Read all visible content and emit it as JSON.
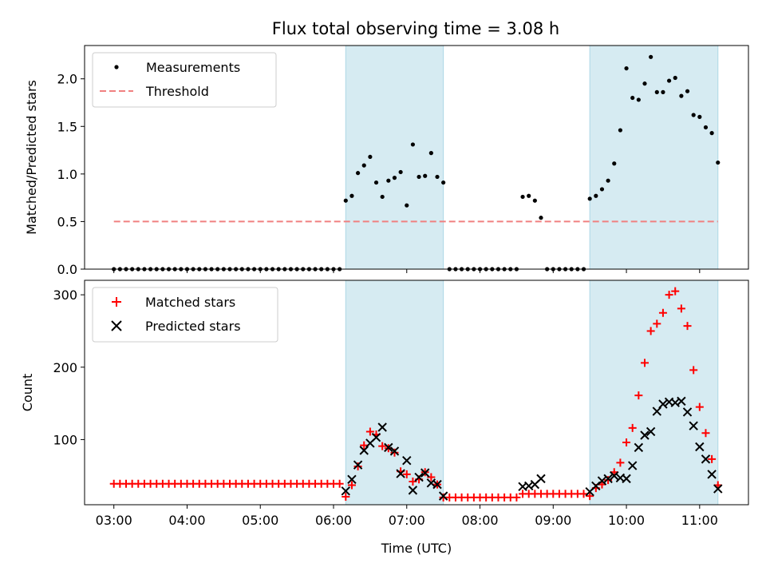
{
  "title": "Flux total observing time = 3.08 h",
  "colors": {
    "band": "#add8e6",
    "threshold": "#f08080",
    "matched": "#ff0000",
    "predicted": "#000000",
    "measurement": "#000000"
  },
  "chart_data": [
    {
      "type": "scatter",
      "ylabel": "Matched/Predicted stars",
      "xlabel": "",
      "ylim": [
        0,
        2.35
      ],
      "yticks": [
        0.0,
        0.5,
        1.0,
        1.5,
        2.0
      ],
      "ytick_labels": [
        "0.0",
        "0.5",
        "1.0",
        "1.5",
        "2.0"
      ],
      "xlim": [
        "02:36",
        "11:40"
      ],
      "xticks": [
        "03:00",
        "04:00",
        "05:00",
        "06:00",
        "07:00",
        "08:00",
        "09:00",
        "10:00",
        "11:00"
      ],
      "legend_position": "top-left",
      "legend": [
        "Measurements",
        "Threshold"
      ],
      "shaded_intervals": [
        [
          "06:10",
          "07:30"
        ],
        [
          "09:30",
          "11:15"
        ]
      ],
      "threshold": {
        "name": "Threshold",
        "value": 0.5,
        "x_range": [
          "03:00",
          "11:15"
        ]
      },
      "series": [
        {
          "name": "Measurements",
          "points": [
            [
              "03:00",
              0
            ],
            [
              "03:05",
              0
            ],
            [
              "03:10",
              0
            ],
            [
              "03:15",
              0
            ],
            [
              "03:20",
              0
            ],
            [
              "03:25",
              0
            ],
            [
              "03:30",
              0
            ],
            [
              "03:35",
              0
            ],
            [
              "03:40",
              0
            ],
            [
              "03:45",
              0
            ],
            [
              "03:50",
              0
            ],
            [
              "03:55",
              0
            ],
            [
              "04:00",
              0
            ],
            [
              "04:05",
              0
            ],
            [
              "04:10",
              0
            ],
            [
              "04:15",
              0
            ],
            [
              "04:20",
              0
            ],
            [
              "04:25",
              0
            ],
            [
              "04:30",
              0
            ],
            [
              "04:35",
              0
            ],
            [
              "04:40",
              0
            ],
            [
              "04:45",
              0
            ],
            [
              "04:50",
              0
            ],
            [
              "04:55",
              0
            ],
            [
              "05:00",
              0
            ],
            [
              "05:05",
              0
            ],
            [
              "05:10",
              0
            ],
            [
              "05:15",
              0
            ],
            [
              "05:20",
              0
            ],
            [
              "05:25",
              0
            ],
            [
              "05:30",
              0
            ],
            [
              "05:35",
              0
            ],
            [
              "05:40",
              0
            ],
            [
              "05:45",
              0
            ],
            [
              "05:50",
              0
            ],
            [
              "05:55",
              0
            ],
            [
              "06:00",
              0
            ],
            [
              "06:05",
              0
            ],
            [
              "06:10",
              0.72
            ],
            [
              "06:15",
              0.77
            ],
            [
              "06:20",
              1.01
            ],
            [
              "06:25",
              1.09
            ],
            [
              "06:30",
              1.18
            ],
            [
              "06:35",
              0.91
            ],
            [
              "06:40",
              0.76
            ],
            [
              "06:45",
              0.93
            ],
            [
              "06:50",
              0.96
            ],
            [
              "06:55",
              1.02
            ],
            [
              "07:00",
              0.67
            ],
            [
              "07:05",
              1.31
            ],
            [
              "07:10",
              0.97
            ],
            [
              "07:15",
              0.98
            ],
            [
              "07:20",
              1.22
            ],
            [
              "07:25",
              0.97
            ],
            [
              "07:30",
              0.91
            ],
            [
              "07:35",
              0
            ],
            [
              "07:40",
              0
            ],
            [
              "07:45",
              0
            ],
            [
              "07:50",
              0
            ],
            [
              "07:55",
              0
            ],
            [
              "08:00",
              0
            ],
            [
              "08:05",
              0
            ],
            [
              "08:10",
              0
            ],
            [
              "08:15",
              0
            ],
            [
              "08:20",
              0
            ],
            [
              "08:25",
              0
            ],
            [
              "08:30",
              0
            ],
            [
              "08:35",
              0.76
            ],
            [
              "08:40",
              0.77
            ],
            [
              "08:45",
              0.72
            ],
            [
              "08:50",
              0.54
            ],
            [
              "08:55",
              0
            ],
            [
              "09:00",
              0
            ],
            [
              "09:05",
              0
            ],
            [
              "09:10",
              0
            ],
            [
              "09:15",
              0
            ],
            [
              "09:20",
              0
            ],
            [
              "09:25",
              0
            ],
            [
              "09:30",
              0.74
            ],
            [
              "09:35",
              0.77
            ],
            [
              "09:40",
              0.84
            ],
            [
              "09:45",
              0.93
            ],
            [
              "09:50",
              1.11
            ],
            [
              "09:55",
              1.46
            ],
            [
              "10:00",
              2.11
            ],
            [
              "10:05",
              1.8
            ],
            [
              "10:10",
              1.78
            ],
            [
              "10:15",
              1.95
            ],
            [
              "10:20",
              2.23
            ],
            [
              "10:25",
              1.86
            ],
            [
              "10:30",
              1.86
            ],
            [
              "10:35",
              1.98
            ],
            [
              "10:40",
              2.01
            ],
            [
              "10:45",
              1.82
            ],
            [
              "10:50",
              1.87
            ],
            [
              "10:55",
              1.62
            ],
            [
              "11:00",
              1.6
            ],
            [
              "11:05",
              1.49
            ],
            [
              "11:10",
              1.43
            ],
            [
              "11:15",
              1.12
            ]
          ]
        }
      ]
    },
    {
      "type": "scatter",
      "ylabel": "Count",
      "xlabel": "Time (UTC)",
      "ylim": [
        10,
        320
      ],
      "yticks": [
        100,
        200,
        300
      ],
      "ytick_labels": [
        "100",
        "200",
        "300"
      ],
      "xlim": [
        "02:36",
        "11:40"
      ],
      "xticks": [
        "03:00",
        "04:00",
        "05:00",
        "06:00",
        "07:00",
        "08:00",
        "09:00",
        "10:00",
        "11:00"
      ],
      "xtick_labels": [
        "03:00",
        "04:00",
        "05:00",
        "06:00",
        "07:00",
        "08:00",
        "09:00",
        "10:00",
        "11:00"
      ],
      "legend_position": "top-left",
      "legend": [
        "Matched stars",
        "Predicted stars"
      ],
      "shaded_intervals": [
        [
          "06:10",
          "07:30"
        ],
        [
          "09:30",
          "11:15"
        ]
      ],
      "series": [
        {
          "name": "Matched stars",
          "marker": "plus",
          "points": [
            [
              "03:00",
              39
            ],
            [
              "03:05",
              39
            ],
            [
              "03:10",
              39
            ],
            [
              "03:15",
              39
            ],
            [
              "03:20",
              39
            ],
            [
              "03:25",
              39
            ],
            [
              "03:30",
              39
            ],
            [
              "03:35",
              39
            ],
            [
              "03:40",
              39
            ],
            [
              "03:45",
              39
            ],
            [
              "03:50",
              39
            ],
            [
              "03:55",
              39
            ],
            [
              "04:00",
              39
            ],
            [
              "04:05",
              39
            ],
            [
              "04:10",
              39
            ],
            [
              "04:15",
              39
            ],
            [
              "04:20",
              39
            ],
            [
              "04:25",
              39
            ],
            [
              "04:30",
              39
            ],
            [
              "04:35",
              39
            ],
            [
              "04:40",
              39
            ],
            [
              "04:45",
              39
            ],
            [
              "04:50",
              39
            ],
            [
              "04:55",
              39
            ],
            [
              "05:00",
              39
            ],
            [
              "05:05",
              39
            ],
            [
              "05:10",
              39
            ],
            [
              "05:15",
              39
            ],
            [
              "05:20",
              39
            ],
            [
              "05:25",
              39
            ],
            [
              "05:30",
              39
            ],
            [
              "05:35",
              39
            ],
            [
              "05:40",
              39
            ],
            [
              "05:45",
              39
            ],
            [
              "05:50",
              39
            ],
            [
              "05:55",
              39
            ],
            [
              "06:00",
              39
            ],
            [
              "06:05",
              39
            ],
            [
              "06:10",
              21
            ],
            [
              "06:15",
              37
            ],
            [
              "06:20",
              63
            ],
            [
              "06:25",
              92
            ],
            [
              "06:30",
              111
            ],
            [
              "06:35",
              107
            ],
            [
              "06:40",
              91
            ],
            [
              "06:45",
              88
            ],
            [
              "06:50",
              82
            ],
            [
              "06:55",
              56
            ],
            [
              "07:00",
              52
            ],
            [
              "07:05",
              42
            ],
            [
              "07:10",
              45
            ],
            [
              "07:15",
              55
            ],
            [
              "07:20",
              48
            ],
            [
              "07:25",
              38
            ],
            [
              "07:30",
              20
            ],
            [
              "07:35",
              20
            ],
            [
              "07:40",
              20
            ],
            [
              "07:45",
              20
            ],
            [
              "07:50",
              20
            ],
            [
              "07:55",
              20
            ],
            [
              "08:00",
              20
            ],
            [
              "08:05",
              20
            ],
            [
              "08:10",
              20
            ],
            [
              "08:15",
              20
            ],
            [
              "08:20",
              20
            ],
            [
              "08:25",
              20
            ],
            [
              "08:30",
              20
            ],
            [
              "08:35",
              25
            ],
            [
              "08:40",
              25
            ],
            [
              "08:45",
              25
            ],
            [
              "08:50",
              25
            ],
            [
              "08:55",
              25
            ],
            [
              "09:00",
              25
            ],
            [
              "09:05",
              25
            ],
            [
              "09:10",
              25
            ],
            [
              "09:15",
              25
            ],
            [
              "09:20",
              25
            ],
            [
              "09:25",
              25
            ],
            [
              "09:30",
              22
            ],
            [
              "09:35",
              33
            ],
            [
              "09:40",
              38
            ],
            [
              "09:45",
              44
            ],
            [
              "09:50",
              55
            ],
            [
              "09:55",
              68
            ],
            [
              "10:00",
              96
            ],
            [
              "10:05",
              116
            ],
            [
              "10:10",
              161
            ],
            [
              "10:15",
              206
            ],
            [
              "10:20",
              250
            ],
            [
              "10:25",
              260
            ],
            [
              "10:30",
              275
            ],
            [
              "10:35",
              300
            ],
            [
              "10:40",
              305
            ],
            [
              "10:45",
              281
            ],
            [
              "10:50",
              257
            ],
            [
              "10:55",
              196
            ],
            [
              "11:00",
              145
            ],
            [
              "11:05",
              109
            ],
            [
              "11:10",
              73
            ],
            [
              "11:15",
              37
            ]
          ]
        },
        {
          "name": "Predicted stars",
          "marker": "x",
          "points": [
            [
              "06:10",
              29
            ],
            [
              "06:15",
              45
            ],
            [
              "06:20",
              65
            ],
            [
              "06:25",
              85
            ],
            [
              "06:30",
              95
            ],
            [
              "06:35",
              103
            ],
            [
              "06:40",
              117
            ],
            [
              "06:45",
              89
            ],
            [
              "06:50",
              84
            ],
            [
              "06:55",
              53
            ],
            [
              "07:00",
              71
            ],
            [
              "07:05",
              30
            ],
            [
              "07:10",
              48
            ],
            [
              "07:15",
              54
            ],
            [
              "07:20",
              40
            ],
            [
              "07:25",
              38
            ],
            [
              "07:30",
              22
            ],
            [
              "08:35",
              35
            ],
            [
              "08:40",
              36
            ],
            [
              "08:45",
              38
            ],
            [
              "08:50",
              46
            ],
            [
              "09:30",
              28
            ],
            [
              "09:35",
              36
            ],
            [
              "09:40",
              43
            ],
            [
              "09:45",
              46
            ],
            [
              "09:50",
              50
            ],
            [
              "09:55",
              47
            ],
            [
              "10:00",
              46
            ],
            [
              "10:05",
              64
            ],
            [
              "10:10",
              89
            ],
            [
              "10:15",
              106
            ],
            [
              "10:20",
              111
            ],
            [
              "10:25",
              139
            ],
            [
              "10:30",
              149
            ],
            [
              "10:35",
              152
            ],
            [
              "10:40",
              151
            ],
            [
              "10:45",
              153
            ],
            [
              "10:50",
              138
            ],
            [
              "10:55",
              119
            ],
            [
              "11:00",
              90
            ],
            [
              "11:05",
              73
            ],
            [
              "11:10",
              52
            ],
            [
              "11:15",
              32
            ]
          ]
        }
      ]
    }
  ]
}
